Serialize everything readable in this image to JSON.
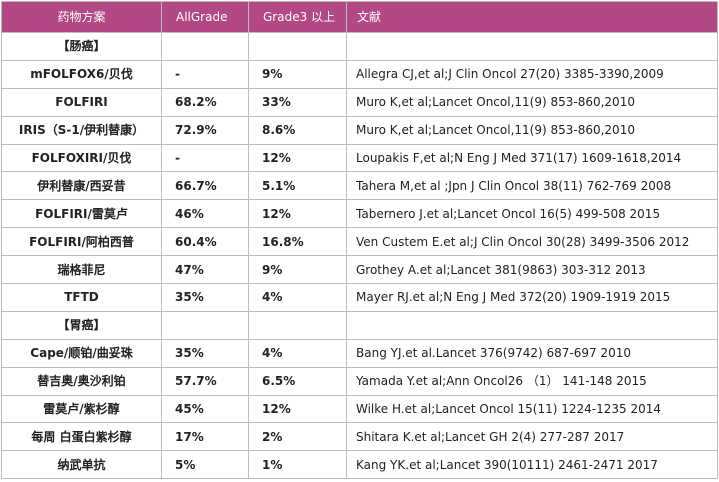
{
  "header": {
    "col_name": "药物方案",
    "col_all": "AllGrade",
    "col_g3": "Grade3 以上",
    "col_ref": "文献"
  },
  "sections": [
    {
      "title": "【肠癌】",
      "rows": [
        {
          "name": "mFOLFOX6/贝伐",
          "all": "-",
          "g3": "9%",
          "ref": "Allegra CJ,et al;J Clin Oncol 27(20) 3385-3390,2009"
        },
        {
          "name": "FOLFIRI",
          "all": "68.2%",
          "g3": "33%",
          "ref": "Muro K,et al;Lancet Oncol,11(9) 853-860,2010"
        },
        {
          "name": "IRIS（S-1/伊利替康）",
          "all": "72.9%",
          "g3": "8.6%",
          "ref": "Muro K,et al;Lancet Oncol,11(9) 853-860,2010"
        },
        {
          "name": "FOLFOXIRI/贝伐",
          "all": "-",
          "g3": "12%",
          "ref": "Loupakis F,et al;N Eng J Med 371(17) 1609-1618,2014"
        },
        {
          "name": "伊利替康/西妥昔",
          "all": "66.7%",
          "g3": "5.1%",
          "ref": "Tahera M,et al ;Jpn J Clin Oncol 38(11) 762-769 2008"
        },
        {
          "name": "FOLFIRI/雷莫卢",
          "all": "46%",
          "g3": "12%",
          "ref": "Tabernero J.et al;Lancet Oncol 16(5) 499-508 2015"
        },
        {
          "name": "FOLFIRI/阿柏西普",
          "all": "60.4%",
          "g3": "16.8%",
          "ref": "Ven Custem E.et al;J Clin Oncol 30(28) 3499-3506 2012"
        },
        {
          "name": "瑞格菲尼",
          "all": "47%",
          "g3": "9%",
          "ref": "Grothey A.et al;Lancet 381(9863) 303-312 2013"
        },
        {
          "name": "TFTD",
          "all": "35%",
          "g3": "4%",
          "ref": "Mayer RJ.et al;N Eng J Med 372(20) 1909-1919 2015"
        }
      ]
    },
    {
      "title": "【胃癌】",
      "rows": [
        {
          "name": "Cape/顺铂/曲妥珠",
          "all": "35%",
          "g3": "4%",
          "ref": "Bang YJ.et al.Lancet 376(9742) 687-697 2010"
        },
        {
          "name": "替吉奥/奥沙利铂",
          "all": "57.7%",
          "g3": "6.5%",
          "ref": "Yamada Y.et al;Ann Oncol26 （1） 141-148 2015"
        },
        {
          "name": "雷莫卢/紫杉醇",
          "all": "45%",
          "g3": "12%",
          "ref": "Wilke H.et al;Lancet Oncol 15(11) 1224-1235 2014"
        },
        {
          "name": "每周 白蛋白紫杉醇",
          "all": "17%",
          "g3": "2%",
          "ref": "Shitara K.et al;Lancet GH 2(4) 277-287 2017"
        },
        {
          "name": "纳武单抗",
          "all": "5%",
          "g3": "1%",
          "ref": "Kang YK.et al;Lancet 390(10111) 2461-2471 2017"
        }
      ]
    }
  ]
}
